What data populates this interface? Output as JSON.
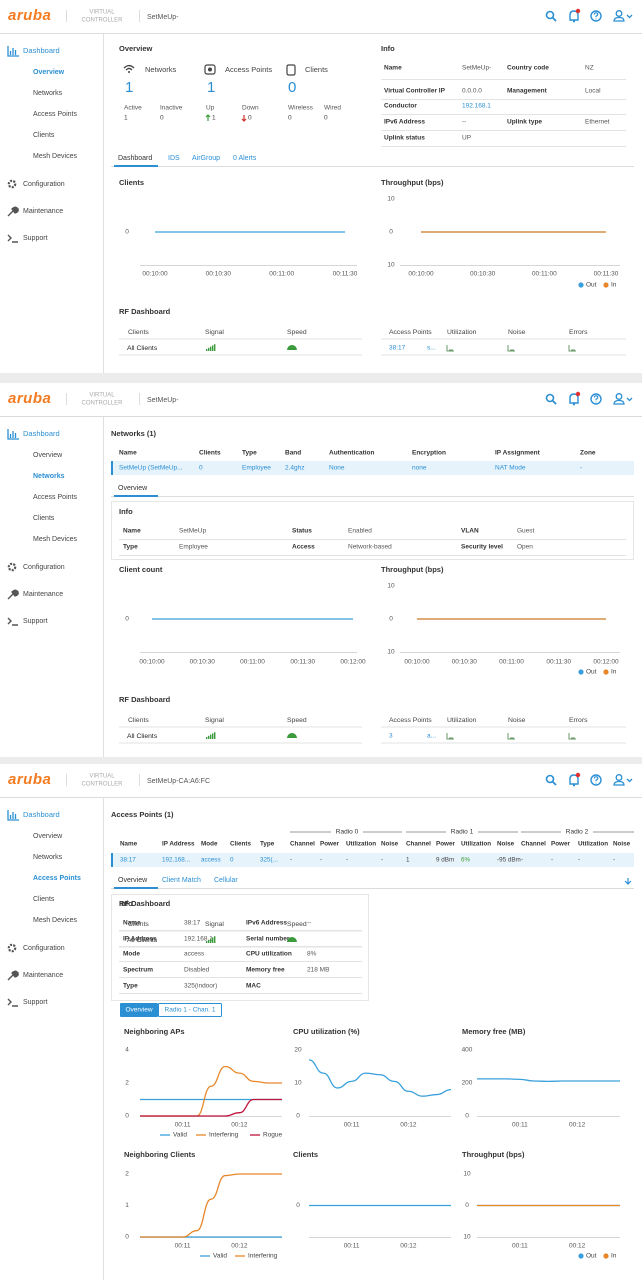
{
  "header": {
    "logo": "aruba",
    "product": [
      "VIRTUAL",
      "CONTROLLER"
    ]
  },
  "nav": {
    "dashboard": "Dashboard",
    "items": [
      "Overview",
      "Networks",
      "Access Points",
      "Clients",
      "Mesh Devices"
    ],
    "sections": [
      "Configuration",
      "Maintenance",
      "Support"
    ]
  },
  "panels": [
    {
      "controller": "SetMeUp-",
      "overview": {
        "title": "Overview",
        "tiles": [
          {
            "name": "Networks",
            "value": 1,
            "stats": [
              {
                "label": "Active",
                "value": 1
              },
              {
                "label": "Inactive",
                "value": 0
              }
            ]
          },
          {
            "name": "Access Points",
            "value": 1,
            "stats": [
              {
                "label": "Up",
                "value": 1
              },
              {
                "label": "Down",
                "value": 0
              }
            ]
          },
          {
            "name": "Clients",
            "value": 0,
            "stats": [
              {
                "label": "Wireless",
                "value": 0
              },
              {
                "label": "Wired",
                "value": 0
              }
            ]
          }
        ]
      },
      "info": {
        "title": "Info",
        "rows": [
          [
            {
              "label": "Name",
              "value": "SetMeUp-"
            },
            {
              "label": "Country code",
              "value": "NZ"
            }
          ],
          [
            {
              "label": "Virtual Controller IP",
              "value": "0.0.0.0"
            },
            {
              "label": "Management",
              "value": "Local"
            }
          ],
          [
            {
              "label": "Conductor",
              "value": "192.168.1"
            }
          ],
          [
            {
              "label": "IPv6 Address",
              "value": "--"
            },
            {
              "label": "Uplink type",
              "value": "Ethernet"
            }
          ],
          [
            {
              "label": "Uplink status",
              "value": "UP"
            }
          ]
        ]
      },
      "tabs": [
        "Dashboard",
        "IDS",
        "AirGroup",
        "0 Alerts"
      ],
      "charts": [
        {
          "type": "line",
          "title": "Clients",
          "categories": [
            "00:10:00",
            "00:10:30",
            "00:11:00",
            "00:11:30"
          ],
          "ylim": [
            -10,
            10
          ],
          "yticks": [
            0
          ],
          "series": [
            {
              "color": "#3aa0dc",
              "values": [
                0,
                0,
                0,
                0
              ]
            }
          ]
        },
        {
          "type": "line",
          "title": "Throughput (bps)",
          "categories": [
            "00:10:00",
            "00:10:30",
            "00:11:00",
            "00:11:30"
          ],
          "ylim": [
            -10,
            10
          ],
          "yticks": [
            {
              "value": -10,
              "label": "10"
            },
            0,
            10
          ],
          "series": [
            {
              "name": "Out",
              "color": "#3aa0dc",
              "values": [
                0,
                0,
                0,
                0
              ]
            },
            {
              "name": "In",
              "color": "#e8872a",
              "values": [
                0,
                0,
                0,
                0
              ]
            }
          ]
        }
      ],
      "rf": {
        "title": "RF Dashboard",
        "client_headers": [
          "Clients",
          "Signal",
          "Speed"
        ],
        "client_row": "All Clients",
        "ap_headers": [
          "Access Points",
          "Utilization",
          "Noise",
          "Errors"
        ],
        "ap_row": [
          "38:17",
          "s..."
        ]
      }
    },
    {
      "controller": "SetMeUp-",
      "title": "Networks (1)",
      "table": {
        "headers": [
          "Name",
          "Clients",
          "Type",
          "Band",
          "Authentication",
          "Encryption",
          "IP Assignment",
          "Zone"
        ],
        "row": [
          "SetMeUp (SetMeUp...",
          0,
          "Employee",
          "2.4ghz",
          "None",
          "none",
          "NAT Mode",
          "-"
        ]
      },
      "tabs": [
        "Overview"
      ],
      "info": {
        "title": "Info",
        "rows": [
          [
            {
              "label": "Name",
              "value": "SetMeUp"
            },
            {
              "label": "Status",
              "value": "Enabled"
            },
            {
              "label": "VLAN",
              "value": "Guest"
            }
          ],
          [
            {
              "label": "Type",
              "value": "Employee"
            },
            {
              "label": "Access",
              "value": "Network-based"
            },
            {
              "label": "Security level",
              "value": "Open"
            }
          ]
        ]
      },
      "charts": [
        {
          "type": "line",
          "title": "Client count",
          "categories": [
            "00:10:00",
            "00:10:30",
            "00:11:00",
            "00:11:30",
            "00:12:00"
          ],
          "ylim": [
            -10,
            10
          ],
          "yticks": [
            0
          ],
          "series": [
            {
              "color": "#3aa0dc",
              "values": [
                0,
                0,
                0,
                0,
                0
              ]
            }
          ]
        },
        {
          "type": "line",
          "title": "Throughput (bps)",
          "categories": [
            "00:10:00",
            "00:10:30",
            "00:11:00",
            "00:11:30",
            "00:12:00"
          ],
          "ylim": [
            -10,
            10
          ],
          "yticks": [
            {
              "value": -10,
              "label": "10"
            },
            0,
            10
          ],
          "series": [
            {
              "name": "Out",
              "color": "#3aa0dc",
              "values": [
                0,
                0,
                0,
                0,
                0
              ]
            },
            {
              "name": "In",
              "color": "#e8872a",
              "values": [
                0,
                0,
                0,
                0,
                0
              ]
            }
          ]
        }
      ],
      "rf": {
        "title": "RF Dashboard",
        "client_headers": [
          "Clients",
          "Signal",
          "Speed"
        ],
        "client_row": "All Clients",
        "ap_headers": [
          "Access Points",
          "Utilization",
          "Noise",
          "Errors"
        ],
        "ap_row": [
          "3",
          "a..."
        ]
      }
    },
    {
      "controller": "SetMeUp-CA:A6:FC",
      "title": "Access Points (1)",
      "table": {
        "groups": [
          "Radio 0",
          "Radio 1",
          "Radio 2"
        ],
        "headers": [
          "Name",
          "IP Address",
          "Mode",
          "Clients",
          "Type",
          "Channel",
          "Power",
          "Utilization",
          "Noise",
          "Channel",
          "Power",
          "Utilization",
          "Noise",
          "Channel",
          "Power",
          "Utilization",
          "Noise"
        ],
        "row": [
          "38:17",
          "192.168...",
          "access",
          0,
          "325(...",
          "-",
          "-",
          "-",
          "-",
          1,
          "9 dBm",
          "6%",
          "-95 dBm",
          "-",
          "-",
          "-",
          "-"
        ]
      },
      "tabs": [
        "Overview",
        "Client Match",
        "Cellular"
      ],
      "info": {
        "title": "Info",
        "rows": [
          [
            {
              "label": "Name",
              "value": "38:17"
            },
            {
              "label": "IPv6 Address",
              "value": "--"
            }
          ],
          [
            {
              "label": "IP Address",
              "value": "192.168.1"
            },
            {
              "label": "Serial number"
            }
          ],
          [
            {
              "label": "Mode",
              "value": "access"
            },
            {
              "label": "CPU utilization",
              "value": "8%"
            }
          ],
          [
            {
              "label": "Spectrum",
              "value": "Disabled"
            },
            {
              "label": "Memory free",
              "value": "218 MB"
            }
          ],
          [
            {
              "label": "Type",
              "value": "325(indoor)"
            },
            {
              "label": "MAC"
            }
          ]
        ]
      },
      "rf": {
        "title": "RF Dashboard",
        "client_headers": [
          "Clients",
          "Signal",
          "Speed"
        ],
        "client_row": "All Clients"
      },
      "buttons": [
        "Overview",
        "Radio 1 - Chan. 1"
      ],
      "charts": [
        {
          "type": "line",
          "title": "Neighboring APs",
          "categories": [
            null,
            null,
            null,
            "00:11",
            null,
            null,
            null,
            "00:12",
            null,
            null,
            null
          ],
          "ylim": [
            0,
            4
          ],
          "yticks": [
            0,
            2,
            4
          ],
          "series": [
            {
              "name": "Valid",
              "color": "#3aa0dc",
              "values": [
                1,
                1,
                1,
                1,
                1,
                1,
                1,
                1,
                1,
                1,
                1
              ]
            },
            {
              "name": "Interfering",
              "color": "#e8872a",
              "values": [
                0,
                0,
                0,
                0,
                0,
                1.8,
                3,
                2.6,
                2.1,
                2,
                2
              ]
            },
            {
              "name": "Rogue",
              "color": "#c0143c",
              "values": [
                0,
                0,
                0,
                0,
                0,
                0,
                0,
                0.2,
                1,
                1,
                1
              ]
            }
          ]
        },
        {
          "type": "line",
          "title": "CPU utilization (%)",
          "categories": [
            null,
            null,
            null,
            "00:11",
            null,
            null,
            null,
            "00:12",
            null,
            null,
            null
          ],
          "ylim": [
            0,
            20
          ],
          "yticks": [
            0,
            10,
            20
          ],
          "series": [
            {
              "color": "#3aa0dc",
              "values": [
                17,
                13,
                8.5,
                10.5,
                13,
                12.5,
                10.5,
                7.5,
                6,
                6.5,
                8
              ]
            }
          ]
        },
        {
          "type": "line",
          "title": "Memory free (MB)",
          "categories": [
            null,
            null,
            null,
            "00:11",
            null,
            null,
            null,
            "00:12",
            null,
            null,
            null
          ],
          "ylim": [
            0,
            400
          ],
          "yticks": [
            0,
            200,
            400
          ],
          "series": [
            {
              "color": "#3aa0dc",
              "values": [
                225,
                225,
                225,
                222,
                212,
                210,
                212,
                212,
                212,
                212,
                212
              ]
            }
          ]
        },
        {
          "type": "line",
          "title": "Neighboring Clients",
          "categories": [
            null,
            null,
            null,
            "00:11",
            null,
            null,
            null,
            "00:12",
            null,
            null,
            null
          ],
          "ylim": [
            0,
            2
          ],
          "yticks": [
            0,
            1,
            2
          ],
          "series": [
            {
              "name": "Valid",
              "color": "#3aa0dc",
              "values": [
                0,
                0,
                0,
                0,
                0,
                0,
                0,
                0,
                0,
                0,
                0
              ]
            },
            {
              "name": "Interfering",
              "color": "#e8872a",
              "values": [
                0,
                0,
                0,
                0,
                0.2,
                1.2,
                1.95,
                2,
                2,
                2,
                2
              ]
            }
          ]
        },
        {
          "type": "line",
          "title": "Clients",
          "categories": [
            null,
            null,
            null,
            "00:11",
            null,
            null,
            null,
            "00:12",
            null,
            null,
            null
          ],
          "ylim": [
            -10,
            10
          ],
          "yticks": [
            0
          ],
          "series": [
            {
              "color": "#3aa0dc",
              "values": [
                0,
                0,
                0,
                0,
                0,
                0,
                0,
                0,
                0,
                0,
                0
              ]
            }
          ]
        },
        {
          "type": "line",
          "title": "Throughput (bps)",
          "categories": [
            null,
            null,
            null,
            "00:11",
            null,
            null,
            null,
            "00:12",
            null,
            null,
            null
          ],
          "ylim": [
            -10,
            10
          ],
          "yticks": [
            {
              "value": -10,
              "label": "10"
            },
            0,
            10
          ],
          "series": [
            {
              "name": "Out",
              "color": "#3aa0dc",
              "values": [
                0,
                0,
                0,
                0,
                0,
                0,
                0,
                0,
                0,
                0,
                0
              ]
            },
            {
              "name": "In",
              "color": "#e8872a",
              "values": [
                0,
                0,
                0,
                0,
                0,
                0,
                0,
                0,
                0,
                0,
                0
              ]
            }
          ]
        }
      ]
    }
  ]
}
